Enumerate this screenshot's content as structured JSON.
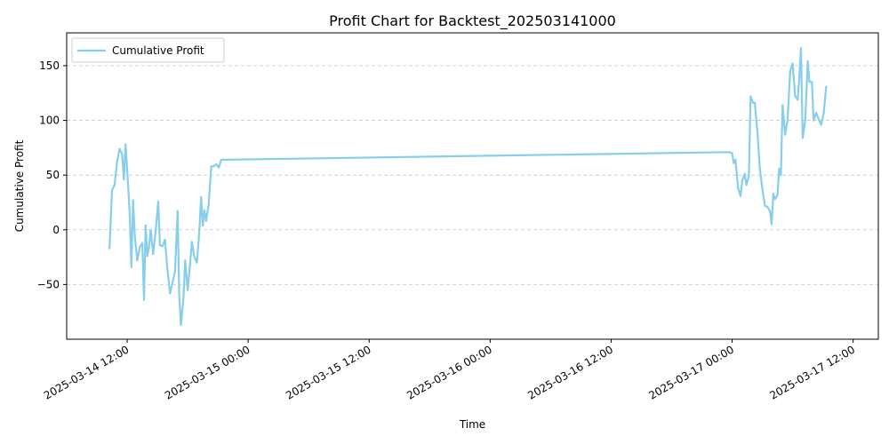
{
  "chart_data": {
    "type": "line",
    "title": "Profit Chart for Backtest_202503141000",
    "xlabel": "Time",
    "ylabel": "Cumulative Profit",
    "legend": {
      "placement": "top-left",
      "entries": [
        "Cumulative Profit"
      ]
    },
    "grid": {
      "y": true,
      "x": false,
      "style": "dashed"
    },
    "xlim": [
      "2025-03-14 06:00",
      "2025-03-17 14:30"
    ],
    "ylim": [
      -100,
      180
    ],
    "x_ticks": [
      "2025-03-14 12:00",
      "2025-03-15 00:00",
      "2025-03-15 12:00",
      "2025-03-16 00:00",
      "2025-03-16 12:00",
      "2025-03-17 00:00",
      "2025-03-17 12:00"
    ],
    "y_ticks": [
      -50,
      0,
      50,
      100,
      150
    ],
    "series": [
      {
        "name": "Cumulative Profit",
        "color": "#87CEEB",
        "points": [
          [
            "2025-03-14 10:15",
            -17
          ],
          [
            "2025-03-14 10:30",
            36
          ],
          [
            "2025-03-14 10:45",
            41
          ],
          [
            "2025-03-14 11:00",
            62
          ],
          [
            "2025-03-14 11:15",
            74
          ],
          [
            "2025-03-14 11:30",
            69
          ],
          [
            "2025-03-14 11:40",
            46
          ],
          [
            "2025-03-14 11:50",
            78
          ],
          [
            "2025-03-14 12:00",
            56
          ],
          [
            "2025-03-14 12:15",
            15
          ],
          [
            "2025-03-14 12:25",
            -34
          ],
          [
            "2025-03-14 12:35",
            27
          ],
          [
            "2025-03-14 12:45",
            -5
          ],
          [
            "2025-03-14 13:00",
            -28
          ],
          [
            "2025-03-14 13:15",
            -16
          ],
          [
            "2025-03-14 13:30",
            -12
          ],
          [
            "2025-03-14 13:40",
            -64
          ],
          [
            "2025-03-14 13:50",
            4
          ],
          [
            "2025-03-14 14:00",
            -24
          ],
          [
            "2025-03-14 14:10",
            -16
          ],
          [
            "2025-03-14 14:20",
            0
          ],
          [
            "2025-03-14 14:35",
            -22
          ],
          [
            "2025-03-14 14:50",
            0
          ],
          [
            "2025-03-14 15:05",
            26
          ],
          [
            "2025-03-14 15:15",
            -14
          ],
          [
            "2025-03-14 15:30",
            -15
          ],
          [
            "2025-03-14 15:45",
            -9
          ],
          [
            "2025-03-14 16:00",
            -37
          ],
          [
            "2025-03-14 16:15",
            -58
          ],
          [
            "2025-03-14 16:30",
            -48
          ],
          [
            "2025-03-14 16:45",
            -38
          ],
          [
            "2025-03-14 17:00",
            17
          ],
          [
            "2025-03-14 17:10",
            -60
          ],
          [
            "2025-03-14 17:20",
            -87
          ],
          [
            "2025-03-14 17:35",
            -62
          ],
          [
            "2025-03-14 17:45",
            -28
          ],
          [
            "2025-03-14 18:00",
            -55
          ],
          [
            "2025-03-14 18:15",
            -30
          ],
          [
            "2025-03-14 18:25",
            -11
          ],
          [
            "2025-03-14 18:40",
            -25
          ],
          [
            "2025-03-14 18:55",
            -30
          ],
          [
            "2025-03-14 19:10",
            0
          ],
          [
            "2025-03-14 19:20",
            30
          ],
          [
            "2025-03-14 19:30",
            4
          ],
          [
            "2025-03-14 19:40",
            18
          ],
          [
            "2025-03-14 19:50",
            8
          ],
          [
            "2025-03-14 20:05",
            23
          ],
          [
            "2025-03-14 20:20",
            58
          ],
          [
            "2025-03-14 20:35",
            58
          ],
          [
            "2025-03-14 20:50",
            60
          ],
          [
            "2025-03-14 21:05",
            57
          ],
          [
            "2025-03-14 21:20",
            64
          ],
          [
            "2025-03-14 21:40",
            64
          ],
          [
            "2025-03-16 23:40",
            71
          ],
          [
            "2025-03-17 00:00",
            70
          ],
          [
            "2025-03-17 00:10",
            61
          ],
          [
            "2025-03-17 00:20",
            64
          ],
          [
            "2025-03-17 00:35",
            38
          ],
          [
            "2025-03-17 00:50",
            31
          ],
          [
            "2025-03-17 01:00",
            45
          ],
          [
            "2025-03-17 01:15",
            51
          ],
          [
            "2025-03-17 01:25",
            41
          ],
          [
            "2025-03-17 01:40",
            49
          ],
          [
            "2025-03-17 01:50",
            122
          ],
          [
            "2025-03-17 02:05",
            116
          ],
          [
            "2025-03-17 02:15",
            116
          ],
          [
            "2025-03-17 02:30",
            90
          ],
          [
            "2025-03-17 02:45",
            56
          ],
          [
            "2025-03-17 03:00",
            37
          ],
          [
            "2025-03-17 03:15",
            22
          ],
          [
            "2025-03-17 03:30",
            21
          ],
          [
            "2025-03-17 03:45",
            17
          ],
          [
            "2025-03-17 03:55",
            5
          ],
          [
            "2025-03-17 04:05",
            33
          ],
          [
            "2025-03-17 04:15",
            28
          ],
          [
            "2025-03-17 04:30",
            32
          ],
          [
            "2025-03-17 04:40",
            56
          ],
          [
            "2025-03-17 04:50",
            50
          ],
          [
            "2025-03-17 05:00",
            114
          ],
          [
            "2025-03-17 05:15",
            87
          ],
          [
            "2025-03-17 05:30",
            100
          ],
          [
            "2025-03-17 05:45",
            145
          ],
          [
            "2025-03-17 06:00",
            152
          ],
          [
            "2025-03-17 06:15",
            122
          ],
          [
            "2025-03-17 06:30",
            119
          ],
          [
            "2025-03-17 06:40",
            140
          ],
          [
            "2025-03-17 06:50",
            166
          ],
          [
            "2025-03-17 07:00",
            84
          ],
          [
            "2025-03-17 07:15",
            100
          ],
          [
            "2025-03-17 07:30",
            154
          ],
          [
            "2025-03-17 07:40",
            135
          ],
          [
            "2025-03-17 07:55",
            135
          ],
          [
            "2025-03-17 08:05",
            100
          ],
          [
            "2025-03-17 08:20",
            107
          ],
          [
            "2025-03-17 08:35",
            101
          ],
          [
            "2025-03-17 08:50",
            96
          ],
          [
            "2025-03-17 09:05",
            107
          ],
          [
            "2025-03-17 09:20",
            131
          ]
        ]
      }
    ]
  }
}
